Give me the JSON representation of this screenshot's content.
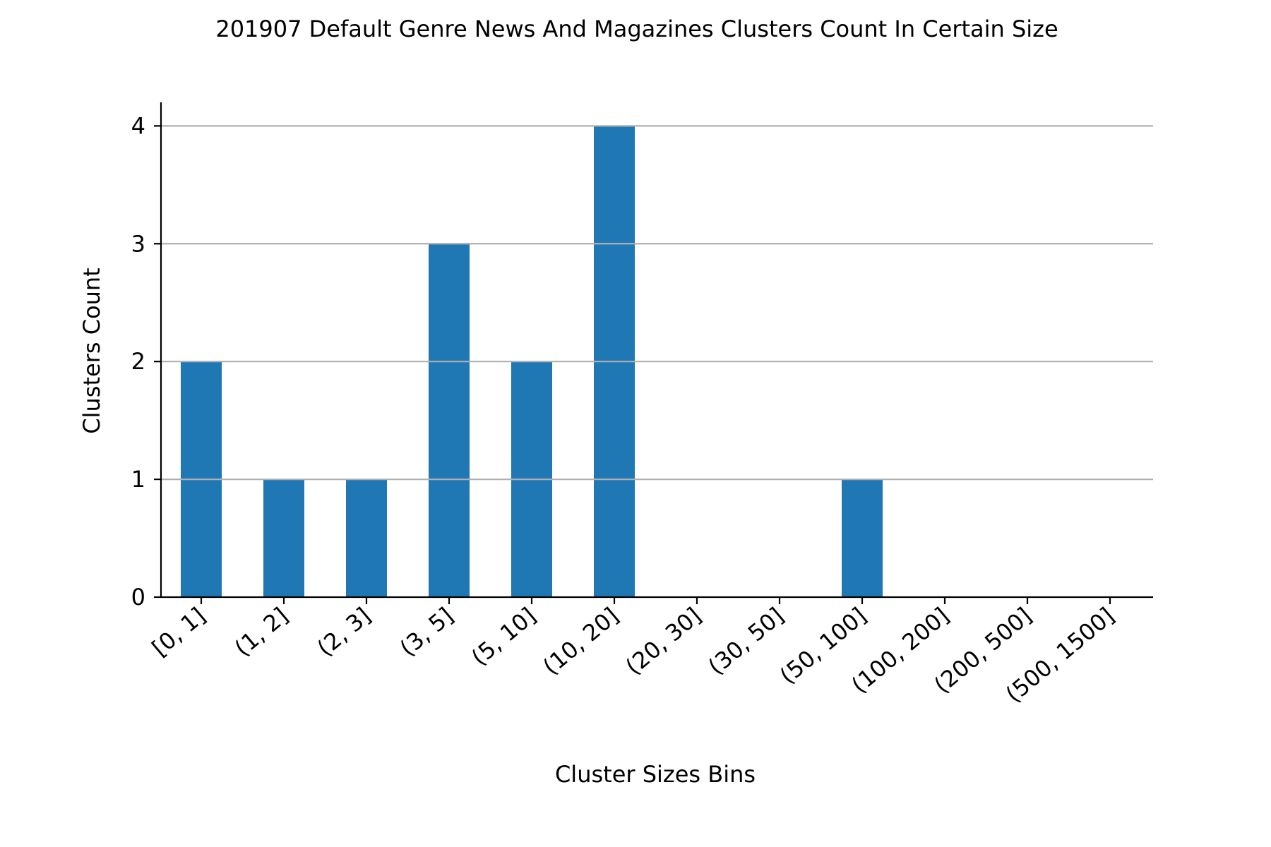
{
  "chart_data": {
    "type": "bar",
    "title": "201907 Default Genre News And Magazines Clusters Count In Certain Size",
    "xlabel": "Cluster Sizes Bins",
    "ylabel": "Clusters Count",
    "categories": [
      "[0, 1]",
      "(1, 2]",
      "(2, 3]",
      "(3, 5]",
      "(5, 10]",
      "(10, 20]",
      "(20, 30]",
      "(30, 50]",
      "(50, 100]",
      "(100, 200]",
      "(200, 500]",
      "(500, 1500]"
    ],
    "values": [
      2,
      1,
      1,
      3,
      2,
      4,
      0,
      0,
      1,
      0,
      0,
      0
    ],
    "ylim": [
      0,
      4.2
    ],
    "yticks": [
      0,
      1,
      2,
      3,
      4
    ],
    "grid": "horizontal",
    "legend": "none",
    "bar_color": "#1f77b4",
    "grid_color": "#b0b0b0"
  }
}
